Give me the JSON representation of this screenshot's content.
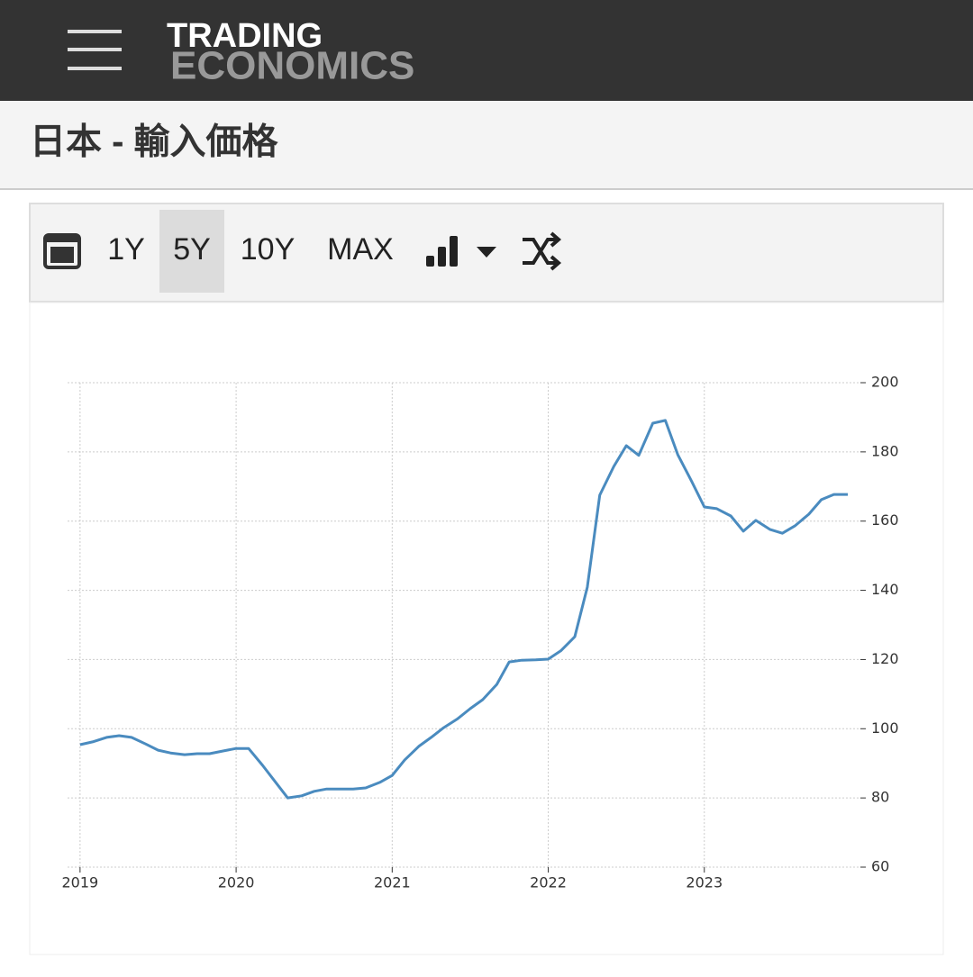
{
  "header": {
    "logo_line1": "TRADING",
    "logo_line2": "ECONOMICS"
  },
  "title": "日本 - 輸入価格",
  "toolbar": {
    "buttons": [
      "1Y",
      "5Y",
      "10Y",
      "MAX"
    ],
    "selected_index": 1
  },
  "chart_data": {
    "type": "line",
    "color": "#4a8bbf",
    "grid": true,
    "x": [
      2019.0,
      2019.08,
      2019.17,
      2019.25,
      2019.33,
      2019.42,
      2019.5,
      2019.58,
      2019.67,
      2019.75,
      2019.83,
      2019.92,
      2020.0,
      2020.08,
      2020.17,
      2020.25,
      2020.33,
      2020.42,
      2020.5,
      2020.58,
      2020.67,
      2020.75,
      2020.83,
      2020.92,
      2021.0,
      2021.08,
      2021.17,
      2021.25,
      2021.33,
      2021.42,
      2021.5,
      2021.58,
      2021.67,
      2021.75,
      2021.83,
      2021.92,
      2022.0,
      2022.08,
      2022.17,
      2022.25,
      2022.33,
      2022.42,
      2022.5,
      2022.58,
      2022.67,
      2022.75,
      2022.83,
      2022.92,
      2023.0,
      2023.08,
      2023.17,
      2023.25,
      2023.33,
      2023.42,
      2023.5,
      2023.58,
      2023.67,
      2023.75,
      2023.83,
      2023.92
    ],
    "values": [
      95.4,
      96.2,
      97.5,
      98,
      97.5,
      95.6,
      93.8,
      93,
      92.5,
      92.8,
      92.8,
      93.6,
      94.3,
      94.3,
      89.4,
      84.7,
      80,
      80.6,
      81.9,
      82.6,
      82.6,
      82.6,
      82.9,
      84.5,
      86.5,
      91,
      94.9,
      97.5,
      100.3,
      102.9,
      105.8,
      108.4,
      112.8,
      119.3,
      119.8,
      119.9,
      120.1,
      122.5,
      126.6,
      140.9,
      167.5,
      175.8,
      181.8,
      179,
      188.3,
      189.1,
      179.2,
      171.4,
      164.1,
      163.6,
      161.5,
      157.1,
      160.2,
      157.6,
      156.5,
      158.6,
      162,
      166.2,
      167.7,
      167.7
    ],
    "xlim": [
      2018.92,
      2024.0
    ],
    "xticks": [
      2019,
      2020,
      2021,
      2022,
      2023
    ],
    "ylim": [
      60,
      200
    ],
    "yticks": [
      60,
      80,
      100,
      120,
      140,
      160,
      180,
      200
    ]
  }
}
